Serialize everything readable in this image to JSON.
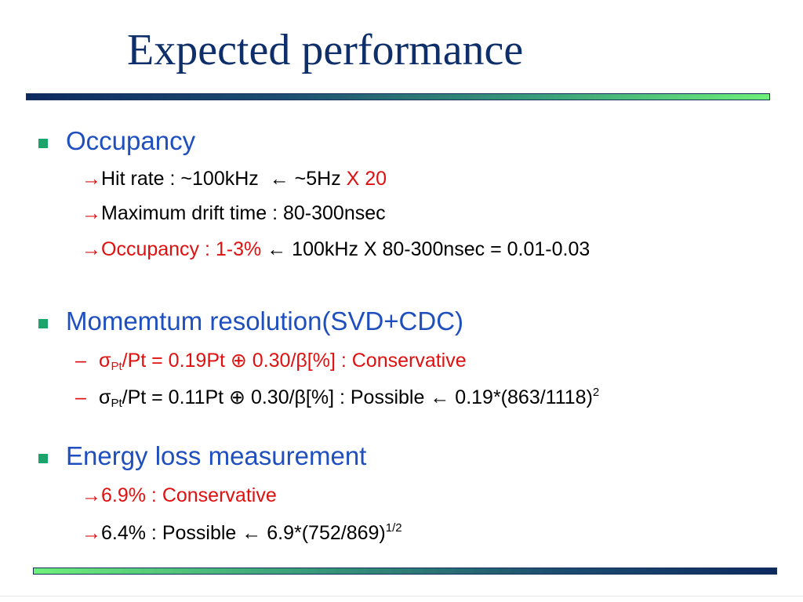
{
  "slide": {
    "title": "Expected performance",
    "sections": [
      {
        "heading": "Occupancy",
        "items": [
          {
            "arrow": "→",
            "text": "Hit rate : ~100kHz",
            "back_arrow": "←",
            "rest": "~5Hz",
            "highlight": "X 20"
          },
          {
            "arrow": "→",
            "text": "Maximum drift time : 80-300nsec"
          },
          {
            "arrow": "→",
            "highlight": "Occupancy : 1-3%",
            "back_arrow": "←",
            "rest": "100kHz X 80-300nsec = 0.01-0.03"
          }
        ]
      },
      {
        "heading": "Momemtum resolution(SVD+CDC)",
        "items": [
          {
            "dash": "–",
            "sigma": "σ",
            "sub": "Pt",
            "text": "/Pt = 0.19Pt ⊕ 0.30/β[%] : Conservative"
          },
          {
            "dash": "–",
            "sigma": "σ",
            "sub": "Pt",
            "text": "/Pt = 0.11Pt ⊕ 0.30/β[%] : Possible",
            "back_arrow": "←",
            "rest": "0.19*(863/1118)",
            "sup": "2"
          }
        ]
      },
      {
        "heading": "Energy loss measurement",
        "items": [
          {
            "arrow": "→",
            "highlight": "6.9% : Conservative"
          },
          {
            "arrow": "→",
            "text": "6.4% : Possible",
            "back_arrow": "←",
            "rest": "6.9*(752/869)",
            "sup": "1/2"
          }
        ]
      }
    ]
  },
  "colors": {
    "title": "#0f2f6b",
    "heading": "#1f4fbf",
    "accent_red": "#e01010",
    "bullet": "#1aa36a"
  }
}
